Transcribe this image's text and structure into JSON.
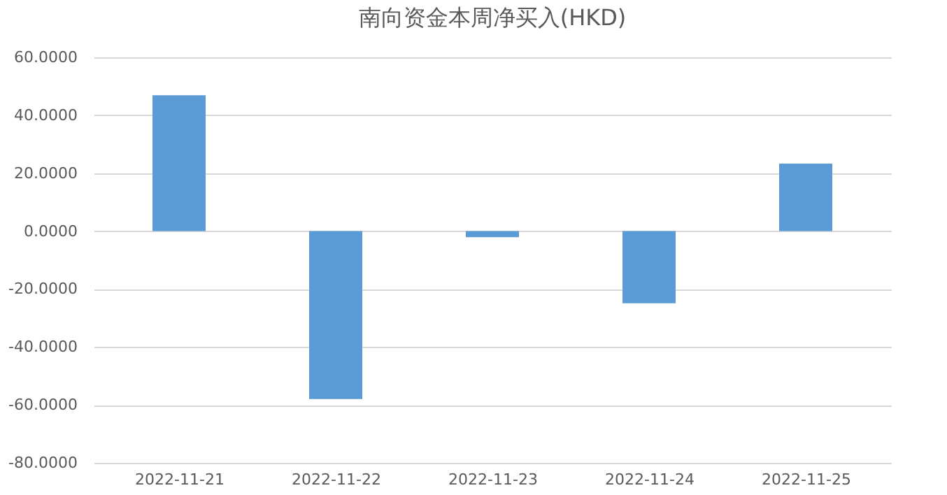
{
  "chart_data": {
    "type": "bar",
    "title": "南向资金本周净买入(HKD)",
    "categories": [
      "2022-11-21",
      "2022-11-22",
      "2022-11-23",
      "2022-11-24",
      "2022-11-25"
    ],
    "values": [
      46.9,
      -58.0,
      -2.1,
      -24.9,
      23.3
    ],
    "color": "#5b9bd5",
    "ylim": [
      -80,
      60
    ],
    "yticks": [
      {
        "value": -80,
        "label": "-80.0000"
      },
      {
        "value": -60,
        "label": "-60.0000"
      },
      {
        "value": -40,
        "label": "-40.0000"
      },
      {
        "value": -20,
        "label": "-20.0000"
      },
      {
        "value": 0,
        "label": "0.0000"
      },
      {
        "value": 20,
        "label": "20.0000"
      },
      {
        "value": 40,
        "label": "40.0000"
      },
      {
        "value": 60,
        "label": "60.0000"
      }
    ],
    "grid": "y"
  }
}
